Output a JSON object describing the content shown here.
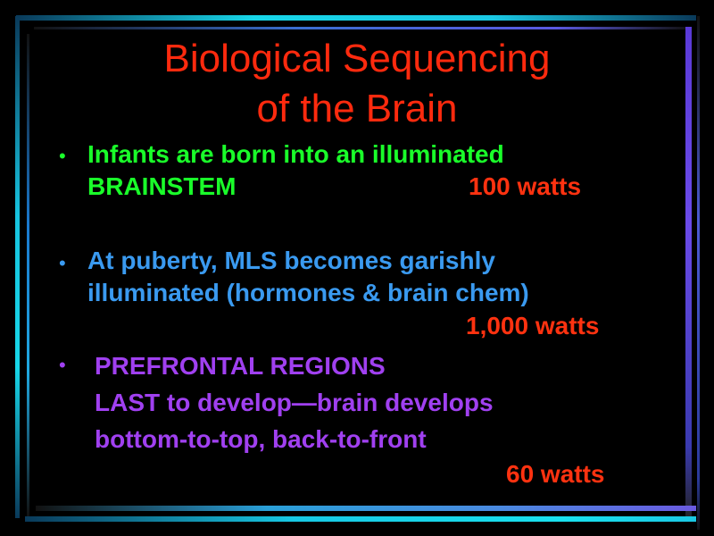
{
  "slide": {
    "title_line1": "Biological Sequencing",
    "title_line2": "of the Brain",
    "bullet_char": "•",
    "bullets": [
      {
        "lines": [
          "Infants are born into an illuminated",
          "BRAINSTEM"
        ],
        "watts": "100 watts",
        "color": "#1aff2a"
      },
      {
        "lines": [
          "At puberty, MLS becomes garishly",
          "illuminated (hormones & brain chem)"
        ],
        "watts": "1,000 watts",
        "color": "#3a9af0"
      },
      {
        "lines": [
          "PREFRONTAL REGIONS",
          "LAST to develop—brain develops",
          "bottom-to-top, back-to-front"
        ],
        "watts": "60 watts",
        "color": "#a040f0"
      }
    ],
    "title_color": "#ff2a0e",
    "watts_color": "#ff3210",
    "background": "#000000"
  }
}
